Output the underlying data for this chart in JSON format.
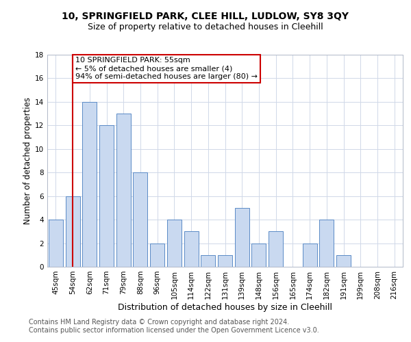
{
  "title": "10, SPRINGFIELD PARK, CLEE HILL, LUDLOW, SY8 3QY",
  "subtitle": "Size of property relative to detached houses in Cleehill",
  "xlabel": "Distribution of detached houses by size in Cleehill",
  "ylabel": "Number of detached properties",
  "categories": [
    "45sqm",
    "54sqm",
    "62sqm",
    "71sqm",
    "79sqm",
    "88sqm",
    "96sqm",
    "105sqm",
    "114sqm",
    "122sqm",
    "131sqm",
    "139sqm",
    "148sqm",
    "156sqm",
    "165sqm",
    "174sqm",
    "182sqm",
    "191sqm",
    "199sqm",
    "208sqm",
    "216sqm"
  ],
  "values": [
    4,
    6,
    14,
    12,
    13,
    8,
    2,
    4,
    3,
    1,
    1,
    5,
    2,
    3,
    0,
    2,
    4,
    1,
    0,
    0,
    0
  ],
  "bar_color": "#c9d9f0",
  "bar_edge_color": "#5a8ac6",
  "vline_x": 1,
  "vline_color": "#cc0000",
  "annotation_text": "10 SPRINGFIELD PARK: 55sqm\n← 5% of detached houses are smaller (4)\n94% of semi-detached houses are larger (80) →",
  "annotation_box_color": "#ffffff",
  "annotation_box_edge": "#cc0000",
  "ylim": [
    0,
    18
  ],
  "yticks": [
    0,
    2,
    4,
    6,
    8,
    10,
    12,
    14,
    16,
    18
  ],
  "grid_color": "#d0d8e8",
  "footnote": "Contains HM Land Registry data © Crown copyright and database right 2024.\nContains public sector information licensed under the Open Government Licence v3.0.",
  "title_fontsize": 10,
  "subtitle_fontsize": 9,
  "xlabel_fontsize": 9,
  "ylabel_fontsize": 8.5,
  "tick_fontsize": 7.5,
  "annotation_fontsize": 8,
  "footnote_fontsize": 7
}
